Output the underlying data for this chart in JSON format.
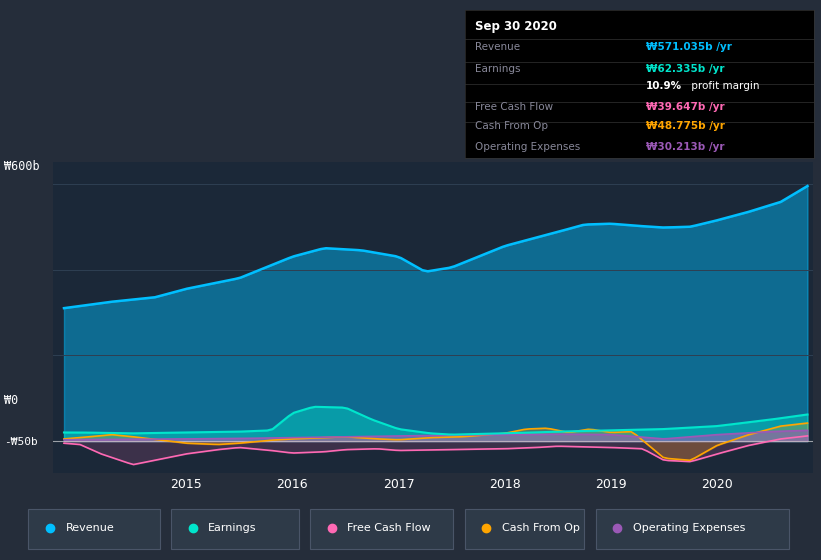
{
  "background_color": "#252d3a",
  "plot_bg_color": "#1b2838",
  "revenue_color": "#00bfff",
  "earnings_color": "#00e5cc",
  "fcf_color": "#ff69b4",
  "cashfromop_color": "#ffa500",
  "opex_color": "#9b59b6",
  "grid_color": "#2e3f52",
  "zero_line_color": "#cccccc",
  "info_box_bg": "#000000",
  "info_box_border": "#333333",
  "label_color": "#888899",
  "legend_box_color": "#2e3a48",
  "info_box": {
    "date": "Sep 30 2020",
    "revenue_label": "Revenue",
    "revenue_val": "₩571.035b /yr",
    "earnings_label": "Earnings",
    "earnings_val": "₩62.335b /yr",
    "profit_margin": "10.9% profit margin",
    "fcf_label": "Free Cash Flow",
    "fcf_val": "₩39.647b /yr",
    "cashfromop_label": "Cash From Op",
    "cashfromop_val": "₩48.775b /yr",
    "opex_label": "Operating Expenses",
    "opex_val": "₩30.213b /yr"
  },
  "x_ticks": [
    "2015",
    "2016",
    "2017",
    "2018",
    "2019",
    "2020"
  ],
  "ylabel_600": "₩600b",
  "ylabel_0": "₩0",
  "ylabel_neg50": "-₩50b",
  "ylim": [
    -75,
    650
  ],
  "xlim": [
    2013.75,
    2020.9
  ],
  "legend_labels": [
    "Revenue",
    "Earnings",
    "Free Cash Flow",
    "Cash From Op",
    "Operating Expenses"
  ]
}
